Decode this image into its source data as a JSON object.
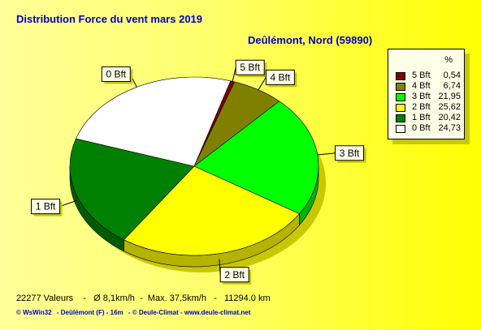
{
  "header": {
    "title": "Distribution Force du vent  mars 2019",
    "location": "Deûlémont, Nord (59890)"
  },
  "chart_data": {
    "type": "pie",
    "categories": [
      "5 Bft",
      "4 Bft",
      "3 Bft",
      "2 Bft",
      "1 Bft",
      "0 Bft"
    ],
    "values": [
      0.54,
      6.74,
      21.95,
      25.62,
      20.42,
      24.73
    ],
    "value_labels": [
      "0,54",
      "6,74",
      "21,95",
      "25,62",
      "20,42",
      "24,73"
    ],
    "colors": [
      "#800000",
      "#808000",
      "#00ff00",
      "#ffff00",
      "#008000",
      "#ffffff"
    ],
    "legend_placement": "right",
    "legend_header": "%"
  },
  "stats": {
    "text": "22277 Valeurs    -   Ø 8,1km/h  -  Max. 37,5km/h   -   11294.0 km"
  },
  "footer": {
    "item1": "© WsWin32",
    "item2": "- Deûlémont (F) - 16m",
    "item3": "- © Deule-Climat - www.deule-climat.net"
  }
}
